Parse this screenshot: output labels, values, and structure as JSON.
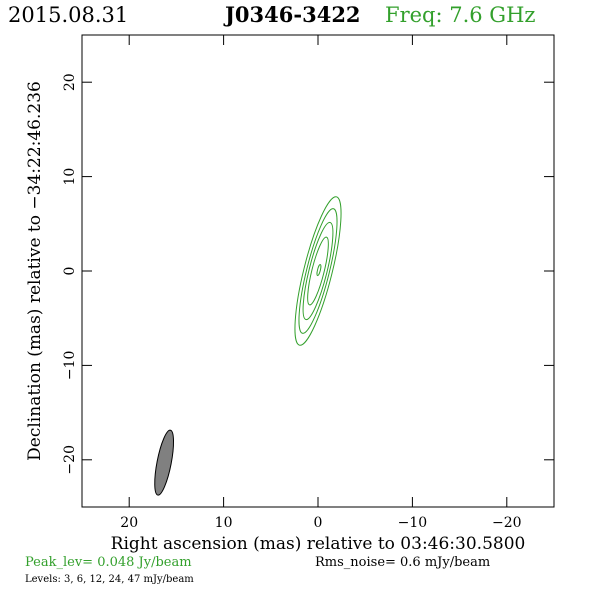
{
  "header": {
    "date": "2015.08.31",
    "source": "J0346-3422",
    "freq": "Freq: 7.6 GHz"
  },
  "footer": {
    "peak": "Peak_lev=  0.048 Jy/beam",
    "rms": "Rms_noise=   0.6 mJy/beam",
    "levels": "Levels:   3,    6,   12,   24,   47  mJy/beam"
  },
  "colors": {
    "contour": "#33a02c",
    "beam_fill": "#808080",
    "axis": "#000000"
  },
  "chart_data": {
    "type": "contour",
    "xlabel": "Right ascension (mas) relative to 03:46:30.5800",
    "ylabel": "Declination (mas) relative to −34:22:46.236",
    "xlim": [
      25,
      -25
    ],
    "ylim": [
      -25,
      25
    ],
    "x_ticks": [
      20,
      10,
      0,
      -10,
      -20
    ],
    "y_ticks": [
      20,
      10,
      0,
      -10,
      -20
    ],
    "x_tick_labels": [
      "20",
      "10",
      "0",
      "−10",
      "−20"
    ],
    "y_tick_labels": [
      "20",
      "10",
      "0",
      "−10",
      "−20"
    ],
    "contour_levels_mJy_per_beam": [
      3,
      6,
      12,
      24,
      47
    ],
    "contours": [
      {
        "level": 3,
        "center": [
          0,
          0
        ],
        "semi_major": 8.1,
        "semi_minor": 1.5,
        "pa_deg": -14
      },
      {
        "level": 6,
        "center": [
          0,
          0
        ],
        "semi_major": 6.8,
        "semi_minor": 1.2,
        "pa_deg": -14
      },
      {
        "level": 12,
        "center": [
          0,
          0
        ],
        "semi_major": 5.3,
        "semi_minor": 0.95,
        "pa_deg": -14
      },
      {
        "level": 24,
        "center": [
          0,
          0
        ],
        "semi_major": 3.7,
        "semi_minor": 0.65,
        "pa_deg": -14
      },
      {
        "level": 47,
        "center": [
          -0.1,
          0.1
        ],
        "semi_major": 0.6,
        "semi_minor": 0.15,
        "pa_deg": -14
      }
    ],
    "beam": {
      "center": [
        16.3,
        -20.3
      ],
      "semi_major": 3.5,
      "semi_minor": 0.75,
      "pa_deg": -11
    },
    "peak_flux_Jy_per_beam": 0.048,
    "rms_noise_mJy_per_beam": 0.6
  }
}
